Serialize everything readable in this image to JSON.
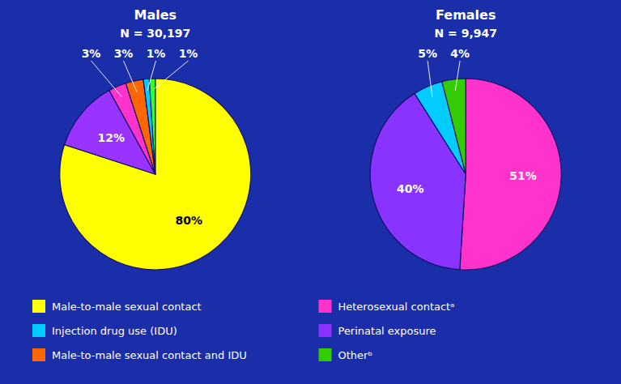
{
  "chart_data": [
    {
      "type": "pie",
      "title": "Males",
      "subtitle": "N = 30,197",
      "values": [
        80,
        12,
        3,
        3,
        1,
        1
      ],
      "value_labels": [
        "80%",
        "12%",
        "3%",
        "3%",
        "1%",
        "1%"
      ],
      "colors": [
        "#ffff00",
        "#9933ff",
        "#ff33cc",
        "#ff6600",
        "#00ccff",
        "#33ff33"
      ],
      "data_labels": true
    },
    {
      "type": "pie",
      "title": "Females",
      "subtitle": "N = 9,947",
      "values": [
        51,
        40,
        5,
        4
      ],
      "value_labels": [
        "51%",
        "40%",
        "5%",
        "4%"
      ],
      "colors": [
        "#ff33cc",
        "#8833ff",
        "#00ccff",
        "#33cc00"
      ],
      "data_labels": true
    }
  ],
  "legend_items": [
    {
      "label": "Male-to-male sexual contact",
      "color": "#ffff00"
    },
    {
      "label": "Injection drug use (IDU)",
      "color": "#00ccff"
    },
    {
      "label": "Male-to-male sexual contact and IDU",
      "color": "#ff6600"
    },
    {
      "label": "Heterosexual contactᵃ",
      "color": "#ff33cc"
    },
    {
      "label": "Perinatal exposure",
      "color": "#8833ff"
    },
    {
      "label": "Otherᵇ",
      "color": "#33cc00"
    }
  ]
}
